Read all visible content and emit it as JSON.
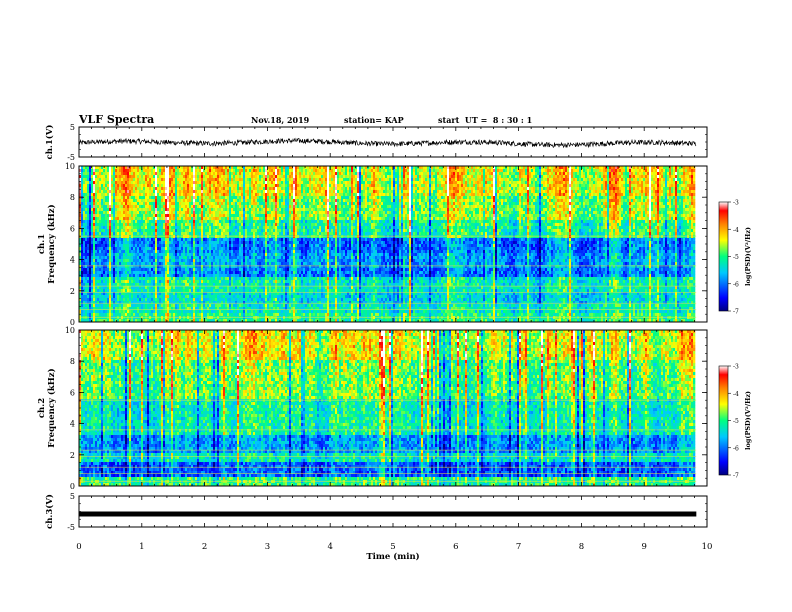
{
  "header": {
    "title": "VLF Spectra",
    "date": "Nov.18, 2019",
    "station": "station= KAP",
    "start": "start  UT =  8 : 30 : 1"
  },
  "chart_data": [
    {
      "type": "line",
      "name": "ch.1 waveform",
      "ylabel": "ch.1(V)",
      "ylim": [
        -5,
        5
      ],
      "yticks": [
        "5",
        "-5"
      ],
      "xlim": [
        0,
        10
      ],
      "x_extent": 9.83,
      "approx_level": -0.3,
      "approx_amplitude": 1.2,
      "color": "#000000"
    },
    {
      "type": "heatmap",
      "name": "ch.1 spectrogram",
      "ylabel": "ch.1\nFrequency (kHz)",
      "ylim": [
        0,
        10
      ],
      "yticks": [
        "0",
        "2",
        "4",
        "6",
        "8",
        "10"
      ],
      "xlim": [
        0,
        10
      ],
      "x_extent": 9.83,
      "bands_log_psd": [
        {
          "f0": 0.0,
          "f1": 0.5,
          "level": -5.0
        },
        {
          "f0": 0.5,
          "f1": 1.2,
          "level": -5.2
        },
        {
          "f0": 1.2,
          "f1": 2.0,
          "level": -5.4
        },
        {
          "f0": 2.0,
          "f1": 2.8,
          "level": -5.2
        },
        {
          "f0": 2.8,
          "f1": 3.5,
          "level": -5.9
        },
        {
          "f0": 3.5,
          "f1": 4.5,
          "level": -5.7
        },
        {
          "f0": 4.5,
          "f1": 5.3,
          "level": -5.9
        },
        {
          "f0": 5.3,
          "f1": 6.5,
          "level": -5.0
        },
        {
          "f0": 6.5,
          "f1": 8.0,
          "level": -4.6
        },
        {
          "f0": 8.0,
          "f1": 10.0,
          "level": -4.3
        }
      ],
      "colorbar": {
        "label": "log(PSD)(V²/Hz)",
        "ticks": [
          "-3",
          "-4",
          "-5",
          "-6",
          "-7"
        ],
        "range": [
          -7,
          -3
        ]
      }
    },
    {
      "type": "heatmap",
      "name": "ch.2 spectrogram",
      "ylabel": "ch.2\nFrequency (kHz)",
      "ylim": [
        0,
        10
      ],
      "yticks": [
        "0",
        "2",
        "4",
        "6",
        "8",
        "10"
      ],
      "xlim": [
        0,
        10
      ],
      "x_extent": 9.83,
      "bands_log_psd": [
        {
          "f0": 0.0,
          "f1": 0.5,
          "level": -5.0
        },
        {
          "f0": 0.5,
          "f1": 1.6,
          "level": -6.1
        },
        {
          "f0": 1.6,
          "f1": 2.2,
          "level": -5.3
        },
        {
          "f0": 2.2,
          "f1": 3.3,
          "level": -5.8
        },
        {
          "f0": 3.3,
          "f1": 5.5,
          "level": -5.2
        },
        {
          "f0": 5.5,
          "f1": 8.0,
          "level": -4.8
        },
        {
          "f0": 8.0,
          "f1": 10.0,
          "level": -4.4
        }
      ],
      "colorbar": {
        "label": "log(PSD)(V²/Hz)",
        "ticks": [
          "-3",
          "-4",
          "-5",
          "-6",
          "-7"
        ],
        "range": [
          -7,
          -3
        ]
      }
    },
    {
      "type": "line",
      "name": "ch.3 waveform",
      "ylabel": "ch.3(V)",
      "ylim": [
        -5,
        5
      ],
      "yticks": [
        "5",
        "-5"
      ],
      "xlim": [
        0,
        10
      ],
      "x_extent": 9.83,
      "level": -0.8,
      "color": "#000000",
      "xlabel": "Time (min)",
      "xticks": [
        "0",
        "1",
        "2",
        "3",
        "4",
        "5",
        "6",
        "7",
        "8",
        "9",
        "10"
      ]
    }
  ]
}
